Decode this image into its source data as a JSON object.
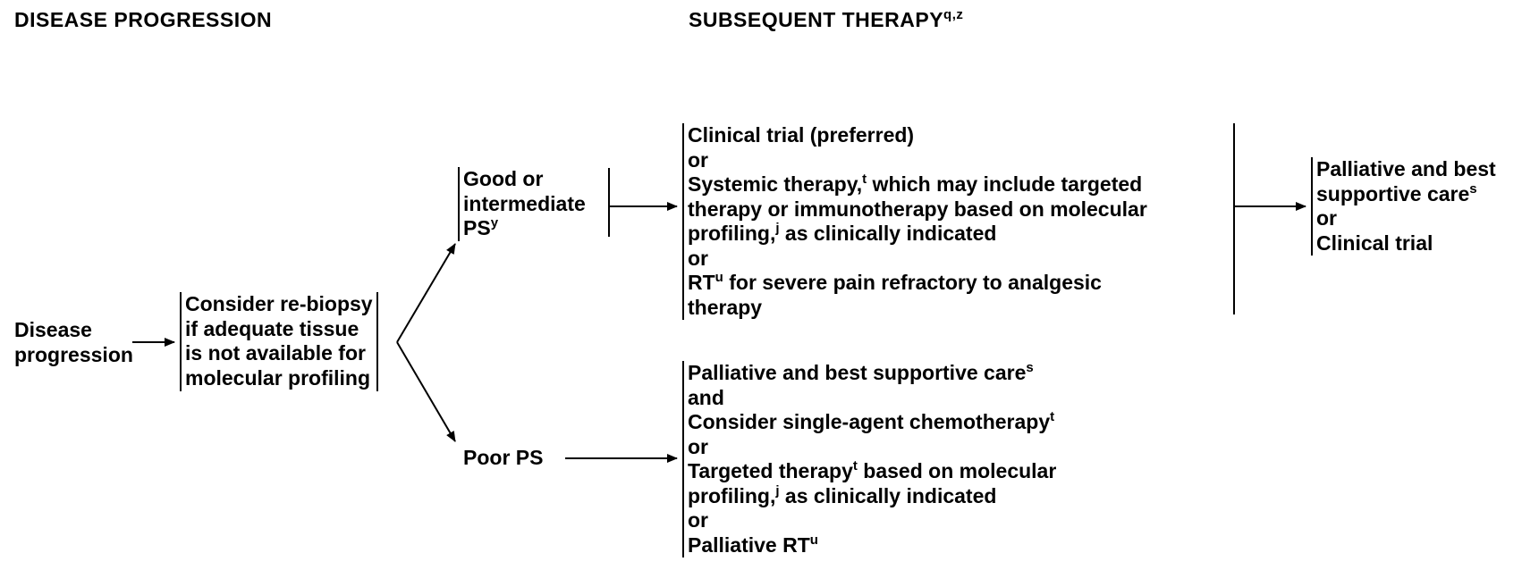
{
  "headers": {
    "left": "DISEASE PROGRESSION",
    "right": "SUBSEQUENT THERAPY",
    "right_sup": "q,z"
  },
  "nodes": {
    "disease": {
      "lines": [
        "Disease",
        "progression"
      ]
    },
    "rebiopsy": {
      "lines": [
        "Consider re-biopsy",
        "if adequate tissue",
        "is not available for",
        "molecular profiling"
      ]
    },
    "good_ps": {
      "line1": "Good or",
      "line2": "intermediate",
      "line3": "PS",
      "line3_sup": "y"
    },
    "poor_ps": {
      "text": "Poor PS"
    },
    "therapy_good": {
      "l1": "Clinical trial (preferred)",
      "l2": "or",
      "l3_a": "Systemic therapy,",
      "l3_sup": "t",
      "l3_b": " which may include targeted",
      "l4": "therapy or immunotherapy based on molecular",
      "l5_a": "profiling,",
      "l5_sup": "j",
      "l5_b": " as clinically indicated",
      "l6": "or",
      "l7_a": "RT",
      "l7_sup": "u",
      "l7_b": " for severe pain refractory to analgesic",
      "l8": "therapy"
    },
    "therapy_poor": {
      "l1_a": "Palliative and best supportive care",
      "l1_sup": "s",
      "l2": "and",
      "l3_a": "Consider single-agent chemotherapy",
      "l3_sup": "t",
      "l4": "or",
      "l5_a": "Targeted therapy",
      "l5_sup": "t",
      "l5_b": " based on molecular",
      "l6_a": "profiling,",
      "l6_sup": "j",
      "l6_b": " as clinically indicated",
      "l7": "or",
      "l8_a": "Palliative RT",
      "l8_sup": "u"
    },
    "palliative": {
      "l1": "Palliative and best",
      "l2_a": "supportive care",
      "l2_sup": "s",
      "l3": "or",
      "l4": "Clinical trial"
    }
  }
}
